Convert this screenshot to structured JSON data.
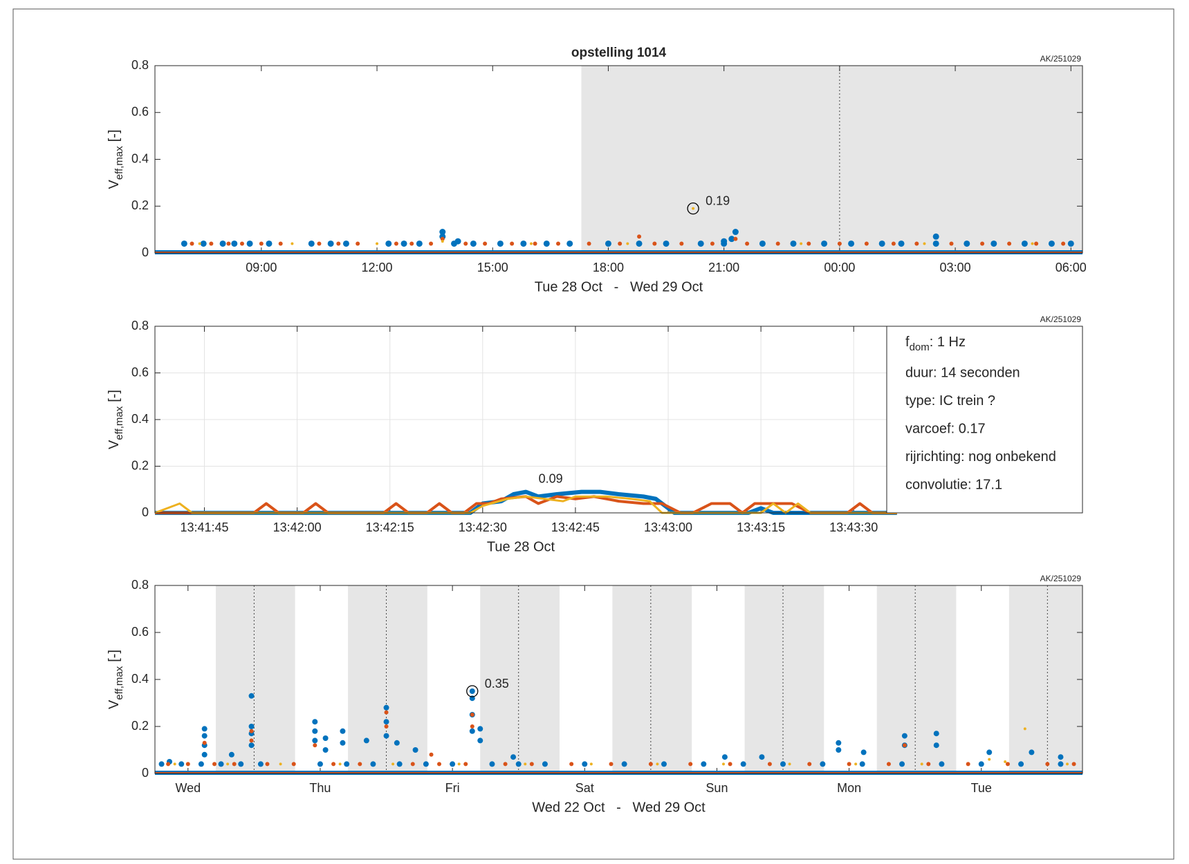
{
  "chart_data": [
    {
      "type": "scatter",
      "title": "opstelling 1014",
      "stamp": "AK/251029",
      "ylabel": "V",
      "ylabel_sub": "eff,max",
      "ylabel_unit": "[-]",
      "xlabel": "Tue 28 Oct   -   Wed 29 Oct",
      "xlim": [
        6.24,
        30.3
      ],
      "ylim": [
        0,
        0.8
      ],
      "yticks": [
        0,
        0.2,
        0.4,
        0.6,
        0.8
      ],
      "xticks": [
        {
          "value": 9,
          "label": "09:00"
        },
        {
          "value": 12,
          "label": "12:00"
        },
        {
          "value": 15,
          "label": "15:00"
        },
        {
          "value": 18,
          "label": "18:00"
        },
        {
          "value": 21,
          "label": "21:00"
        },
        {
          "value": 24,
          "label": "00:00"
        },
        {
          "value": 27,
          "label": "03:00"
        },
        {
          "value": 30,
          "label": "06:00"
        }
      ],
      "shade": [
        [
          17.3,
          30.3
        ]
      ],
      "day_lines": [
        24
      ],
      "grid": false,
      "series": [
        {
          "color": "#0072bd",
          "marker_size": 4.5,
          "x": [
            7,
            7.5,
            8,
            8.3,
            8.7,
            9.2,
            10.3,
            10.8,
            11.2,
            12.3,
            12.7,
            13.1,
            14.0,
            14.5,
            15.2,
            15.8,
            16.4,
            17.0,
            18.0,
            18.8,
            19.5,
            20.4,
            21.0,
            22.0,
            22.8,
            23.6,
            24.3,
            25.1,
            25.6,
            26.5,
            27.3,
            28.0,
            28.8,
            29.5,
            30.0,
            13.7,
            13.7,
            21.3,
            21.2,
            26.5,
            14.1,
            21.0
          ],
          "values": [
            0.04,
            0.04,
            0.04,
            0.04,
            0.04,
            0.04,
            0.04,
            0.04,
            0.04,
            0.04,
            0.04,
            0.04,
            0.04,
            0.04,
            0.04,
            0.04,
            0.04,
            0.04,
            0.04,
            0.04,
            0.04,
            0.04,
            0.04,
            0.04,
            0.04,
            0.04,
            0.04,
            0.04,
            0.04,
            0.04,
            0.04,
            0.04,
            0.04,
            0.04,
            0.04,
            0.09,
            0.07,
            0.09,
            0.06,
            0.07,
            0.05,
            0.05
          ]
        },
        {
          "color": "#d95319",
          "marker_size": 3,
          "x": [
            7.2,
            7.7,
            8.15,
            8.5,
            9.0,
            9.5,
            10.5,
            11.0,
            11.5,
            12.5,
            12.9,
            13.4,
            13.7,
            14.3,
            14.8,
            15.5,
            16.1,
            16.7,
            17.5,
            18.3,
            18.8,
            19.2,
            19.9,
            20.7,
            21.3,
            21.6,
            22.4,
            23.2,
            24.0,
            24.7,
            25.4,
            26.0,
            26.9,
            27.7,
            28.4,
            29.1,
            29.8
          ],
          "values": [
            0.04,
            0.04,
            0.04,
            0.04,
            0.04,
            0.04,
            0.04,
            0.04,
            0.04,
            0.04,
            0.04,
            0.04,
            0.06,
            0.04,
            0.04,
            0.04,
            0.04,
            0.04,
            0.04,
            0.04,
            0.07,
            0.04,
            0.04,
            0.04,
            0.06,
            0.04,
            0.04,
            0.04,
            0.04,
            0.04,
            0.04,
            0.04,
            0.04,
            0.04,
            0.04,
            0.04,
            0.04
          ]
        },
        {
          "color": "#edb120",
          "marker_size": 2,
          "x": [
            7.4,
            9.8,
            12.0,
            13.7,
            16.0,
            18.5,
            20.2,
            23.0,
            26.2,
            29.0
          ],
          "values": [
            0.04,
            0.04,
            0.04,
            0.05,
            0.04,
            0.04,
            0.19,
            0.04,
            0.04,
            0.04
          ]
        }
      ],
      "annotations": [
        {
          "x": 20.2,
          "y": 0.19,
          "text": "0.19",
          "circle": true
        }
      ]
    },
    {
      "type": "line",
      "stamp": "AK/251029",
      "ylabel": "V",
      "ylabel_sub": "eff,max",
      "ylabel_unit": "[-]",
      "xlabel": "Tue 28 Oct",
      "xlim": [
        37,
        187
      ],
      "ylim": [
        0,
        0.8
      ],
      "yticks": [
        0,
        0.2,
        0.4,
        0.6,
        0.8
      ],
      "xticks": [
        {
          "value": 45,
          "label": "13:41:45"
        },
        {
          "value": 60,
          "label": "13:42:00"
        },
        {
          "value": 75,
          "label": "13:42:15"
        },
        {
          "value": 90,
          "label": "13:42:30"
        },
        {
          "value": 105,
          "label": "13:42:45"
        },
        {
          "value": 120,
          "label": "13:43:00"
        },
        {
          "value": 135,
          "label": "13:43:15"
        },
        {
          "value": 150,
          "label": "13:43:30"
        }
      ],
      "grid": true,
      "series": [
        {
          "color": "#0072bd",
          "width": 6,
          "x": [
            37,
            88,
            90,
            93,
            95,
            97,
            99,
            102,
            106,
            109,
            112,
            116,
            118,
            120,
            121,
            133,
            135,
            137,
            157
          ],
          "values": [
            0,
            0,
            0.04,
            0.05,
            0.08,
            0.09,
            0.07,
            0.08,
            0.09,
            0.09,
            0.08,
            0.07,
            0.06,
            0.02,
            0,
            0,
            0.02,
            0,
            0
          ]
        },
        {
          "color": "#d95319",
          "width": 4,
          "x": [
            37,
            53,
            55,
            57,
            61,
            63,
            65,
            74,
            76,
            78,
            81,
            83,
            85,
            87,
            89,
            91,
            93,
            97,
            99,
            102,
            105,
            108,
            112,
            116,
            119,
            122,
            124,
            127,
            130,
            132,
            134,
            140,
            143,
            149,
            151,
            153,
            157
          ],
          "values": [
            0,
            0,
            0.04,
            0,
            0,
            0.04,
            0,
            0,
            0.04,
            0,
            0,
            0.04,
            0,
            0,
            0.04,
            0.04,
            0.06,
            0.07,
            0.04,
            0.07,
            0.06,
            0.07,
            0.05,
            0.04,
            0.04,
            0,
            0,
            0.04,
            0.04,
            0,
            0.04,
            0.04,
            0,
            0,
            0.04,
            0,
            0
          ]
        },
        {
          "color": "#edb120",
          "width": 3,
          "x": [
            37,
            41,
            43,
            88,
            90,
            94,
            97,
            100,
            103,
            105,
            110,
            114,
            117,
            119,
            135,
            137,
            139,
            141,
            143,
            157
          ],
          "values": [
            0,
            0.04,
            0,
            0,
            0.03,
            0.06,
            0.07,
            0.06,
            0.05,
            0.07,
            0.07,
            0.06,
            0.05,
            0,
            0,
            0.04,
            0,
            0.04,
            0,
            0
          ]
        }
      ],
      "annotations": [
        {
          "x": 101,
          "y": 0.09,
          "text": "0.09",
          "circle": false
        }
      ],
      "info_first": {
        "main": "f",
        "sub": "dom",
        "rest": ": 1 Hz"
      },
      "info": [
        "duur: 14 seconden",
        "type: IC trein ?",
        "varcoef: 0.17",
        "rijrichting: nog onbekend",
        "convolutie: 17.1"
      ]
    },
    {
      "type": "scatter",
      "stamp": "AK/251029",
      "ylabel": "V",
      "ylabel_sub": "eff,max",
      "ylabel_unit": "[-]",
      "xlabel": "Wed 22 Oct   -   Wed 29 Oct",
      "xlim": [
        0.25,
        7.265
      ],
      "ylim": [
        0,
        0.8
      ],
      "yticks": [
        0,
        0.2,
        0.4,
        0.6,
        0.8
      ],
      "xticks": [
        {
          "value": 0.5,
          "label": "Wed"
        },
        {
          "value": 1.5,
          "label": "Thu"
        },
        {
          "value": 2.5,
          "label": "Fri"
        },
        {
          "value": 3.5,
          "label": "Sat"
        },
        {
          "value": 4.5,
          "label": "Sun"
        },
        {
          "value": 5.5,
          "label": "Mon"
        },
        {
          "value": 6.5,
          "label": "Tue"
        }
      ],
      "shade": [
        [
          0.71,
          1.31
        ],
        [
          1.71,
          2.31
        ],
        [
          2.71,
          3.31
        ],
        [
          3.71,
          4.31
        ],
        [
          4.71,
          5.31
        ],
        [
          5.71,
          6.31
        ],
        [
          6.71,
          7.31
        ]
      ],
      "day_lines": [
        1,
        2,
        3,
        4,
        5,
        6,
        7
      ],
      "grid": false,
      "series": [
        {
          "color": "#0072bd",
          "marker_size": 4,
          "x": [
            0.3,
            0.45,
            0.6,
            0.75,
            0.9,
            1.05,
            1.5,
            1.7,
            1.9,
            2.1,
            2.3,
            2.5,
            2.8,
            3.0,
            3.2,
            3.5,
            3.8,
            4.1,
            4.4,
            4.7,
            5.0,
            5.3,
            5.6,
            5.9,
            6.2,
            6.5,
            6.8,
            7.1,
            0.36,
            0.625,
            0.625,
            0.625,
            0.625,
            0.83,
            0.98,
            0.98,
            0.98,
            0.98,
            1.46,
            1.46,
            1.46,
            1.54,
            1.54,
            1.67,
            1.67,
            1.85,
            2.0,
            2.0,
            2.0,
            2.08,
            2.22,
            2.65,
            2.65,
            2.65,
            2.65,
            2.71,
            2.71,
            2.96,
            4.56,
            4.84,
            5.42,
            5.42,
            5.61,
            5.92,
            5.92,
            6.16,
            6.16,
            6.56,
            6.88,
            7.1
          ],
          "values": [
            0.04,
            0.04,
            0.04,
            0.04,
            0.04,
            0.04,
            0.04,
            0.04,
            0.04,
            0.04,
            0.04,
            0.04,
            0.04,
            0.04,
            0.04,
            0.04,
            0.04,
            0.04,
            0.04,
            0.04,
            0.04,
            0.04,
            0.04,
            0.04,
            0.04,
            0.04,
            0.04,
            0.04,
            0.05,
            0.19,
            0.16,
            0.12,
            0.08,
            0.08,
            0.33,
            0.2,
            0.17,
            0.12,
            0.22,
            0.18,
            0.14,
            0.15,
            0.1,
            0.18,
            0.13,
            0.14,
            0.28,
            0.22,
            0.16,
            0.13,
            0.1,
            0.35,
            0.32,
            0.25,
            0.18,
            0.19,
            0.14,
            0.07,
            0.07,
            0.07,
            0.13,
            0.1,
            0.09,
            0.16,
            0.12,
            0.17,
            0.12,
            0.09,
            0.09,
            0.07
          ]
        },
        {
          "color": "#d95319",
          "marker_size": 3,
          "x": [
            0.35,
            0.5,
            0.7,
            0.85,
            1.1,
            1.3,
            1.6,
            1.8,
            2.2,
            2.4,
            2.6,
            2.9,
            3.1,
            3.4,
            3.7,
            4.0,
            4.3,
            4.6,
            4.9,
            5.2,
            5.5,
            5.8,
            6.1,
            6.4,
            6.7,
            7.0,
            7.2,
            0.625,
            0.98,
            0.98,
            2.0,
            2.0,
            2.65,
            2.65,
            1.46,
            2.34,
            5.92
          ],
          "values": [
            0.04,
            0.04,
            0.04,
            0.04,
            0.04,
            0.04,
            0.04,
            0.04,
            0.04,
            0.04,
            0.04,
            0.04,
            0.04,
            0.04,
            0.04,
            0.04,
            0.04,
            0.04,
            0.04,
            0.04,
            0.04,
            0.04,
            0.04,
            0.04,
            0.04,
            0.04,
            0.04,
            0.13,
            0.18,
            0.14,
            0.26,
            0.2,
            0.25,
            0.2,
            0.12,
            0.08,
            0.12
          ]
        },
        {
          "color": "#edb120",
          "marker_size": 2,
          "x": [
            0.4,
            0.8,
            1.2,
            1.65,
            2.05,
            2.55,
            3.05,
            3.55,
            4.05,
            4.55,
            5.05,
            5.55,
            6.05,
            6.56,
            6.68,
            6.83,
            7.15
          ],
          "values": [
            0.04,
            0.04,
            0.04,
            0.04,
            0.04,
            0.04,
            0.04,
            0.04,
            0.04,
            0.04,
            0.04,
            0.04,
            0.04,
            0.06,
            0.05,
            0.19,
            0.04
          ]
        }
      ],
      "annotations": [
        {
          "x": 2.65,
          "y": 0.35,
          "text": "0.35",
          "circle": true
        }
      ]
    }
  ]
}
